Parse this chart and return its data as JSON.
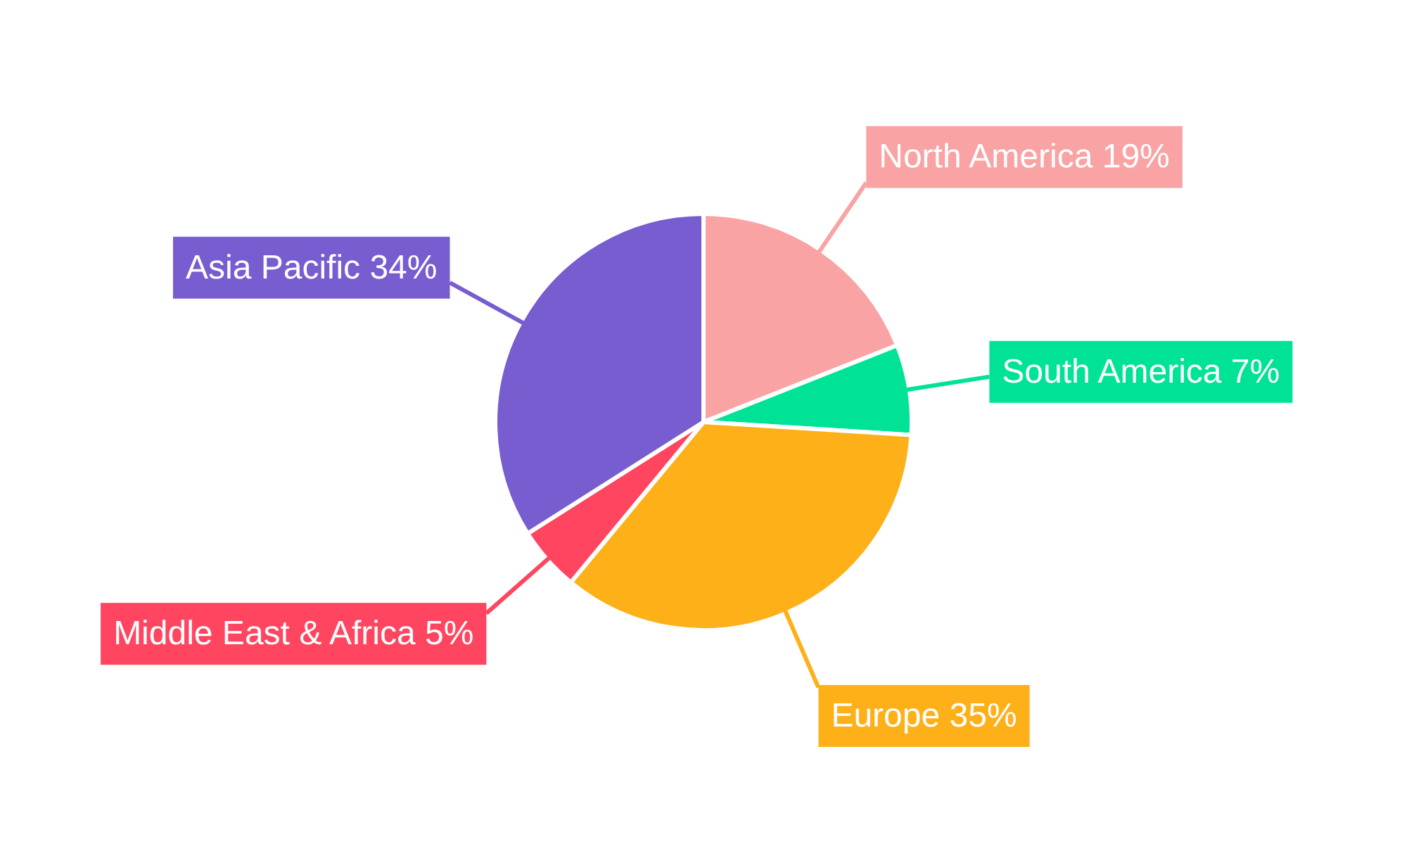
{
  "chart_data": {
    "type": "pie",
    "categories": [
      "North America",
      "South America",
      "Europe",
      "Middle East & Africa",
      "Asia Pacific"
    ],
    "values": [
      19,
      7,
      35,
      5,
      34
    ],
    "colors": [
      "#f9a3a4",
      "#00e396",
      "#feb019",
      "#ff4560",
      "#775dd0"
    ],
    "value_labels": [
      "19%",
      "7%",
      "35%",
      "5%",
      "34%"
    ]
  }
}
